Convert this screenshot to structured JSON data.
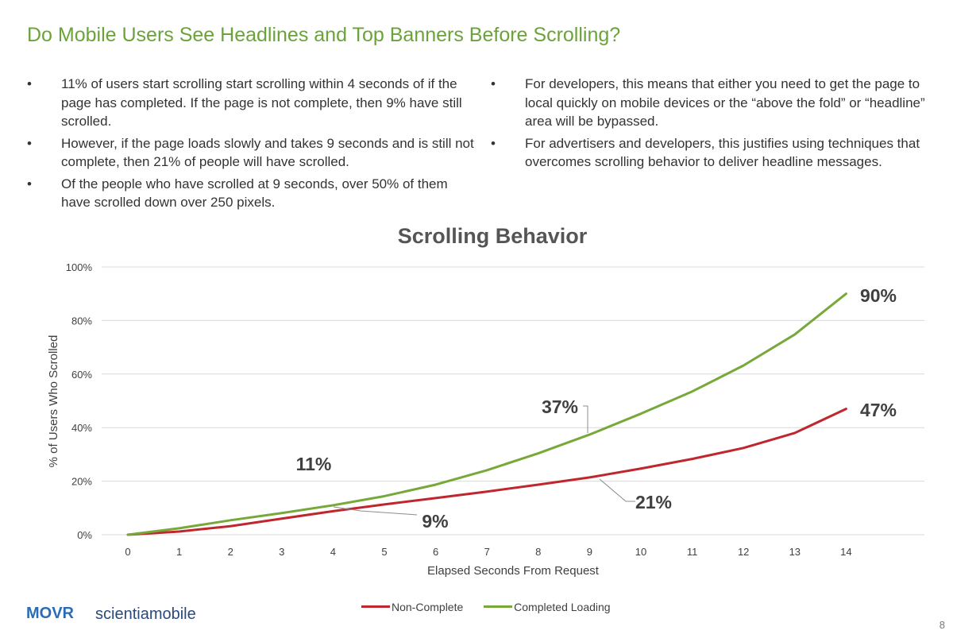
{
  "slide": {
    "title": "Do Mobile Users See Headlines and Top Banners Before Scrolling?",
    "page_number": "8"
  },
  "bullets_left": [
    "11% of users start scrolling start scrolling within 4 seconds of if the page has completed.  If the page is not complete, then 9% have still scrolled.",
    "However, if the page loads slowly and takes 9 seconds and is still not complete, then 21% of people will have scrolled.",
    "Of the people who have scrolled at 9 seconds, over 50% of them have scrolled down over 250 pixels."
  ],
  "bullets_right": [
    "For developers, this means that either you need to get the page to local quickly on mobile devices or the “above the fold” or “headline” area will be bypassed.",
    "For advertisers and developers, this justifies using techniques that overcomes scrolling behavior to deliver headline messages."
  ],
  "bullet_glyph": "•",
  "logos": {
    "movr": "MOVR",
    "scientia": "scientiamobile"
  },
  "chart_data": {
    "type": "line",
    "title": "Scrolling Behavior",
    "xlabel": "Elapsed Seconds From Request",
    "ylabel": "% of Users Who Scrolled",
    "x": [
      0,
      1,
      2,
      3,
      4,
      5,
      6,
      7,
      8,
      9,
      10,
      11,
      12,
      13,
      14
    ],
    "xlim": [
      0,
      15
    ],
    "ylim": [
      0,
      100
    ],
    "yticks": [
      "0%",
      "20%",
      "40%",
      "60%",
      "80%",
      "100%"
    ],
    "grid": true,
    "legend": "bottom-center",
    "series": [
      {
        "name": "Non-Complete",
        "color": "#c0262d",
        "values": [
          0,
          1.2,
          3.2,
          6,
          8.8,
          11.3,
          13.7,
          16.1,
          18.7,
          21.4,
          24.7,
          28.3,
          32.4,
          38,
          47
        ]
      },
      {
        "name": "Completed Loading",
        "color": "#77a83a",
        "values": [
          0,
          2.4,
          5.4,
          8.1,
          11,
          14.4,
          18.7,
          24.1,
          30.4,
          37.4,
          45.2,
          53.5,
          63.2,
          74.8,
          90
        ]
      }
    ],
    "annotations": [
      {
        "text": "11%",
        "x": 4,
        "y": 11,
        "series": "Completed Loading"
      },
      {
        "text": "9%",
        "x": 4,
        "y": 8.8,
        "series": "Non-Complete"
      },
      {
        "text": "37%",
        "x": 9,
        "y": 37.4,
        "series": "Completed Loading"
      },
      {
        "text": "21%",
        "x": 9,
        "y": 21.4,
        "series": "Non-Complete"
      },
      {
        "text": "90%",
        "x": 14,
        "y": 90,
        "series": "Completed Loading"
      },
      {
        "text": "47%",
        "x": 14,
        "y": 47,
        "series": "Non-Complete"
      }
    ]
  }
}
